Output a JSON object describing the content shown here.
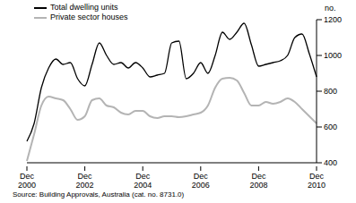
{
  "chart_data": {
    "type": "line",
    "y_label": "no.",
    "source": "Source: Building Approvals, Australia (cat. no. 8731.0)",
    "categories": [
      "Dec 2000",
      null,
      null,
      null,
      null,
      null,
      null,
      null,
      "Dec 2002",
      null,
      null,
      null,
      null,
      null,
      null,
      null,
      "Dec 2004",
      null,
      null,
      null,
      null,
      null,
      null,
      null,
      "Dec 2006",
      null,
      null,
      null,
      null,
      null,
      null,
      null,
      "Dec 2008",
      null,
      null,
      null,
      null,
      null,
      null,
      null,
      "Dec 2010"
    ],
    "series": [
      {
        "name": "Total dwelling units",
        "color": "#000000",
        "values": [
          520,
          620,
          820,
          930,
          980,
          950,
          960,
          870,
          830,
          950,
          1070,
          1000,
          950,
          960,
          930,
          960,
          930,
          880,
          890,
          900,
          1070,
          1080,
          870,
          900,
          960,
          900,
          1000,
          1130,
          1090,
          1130,
          1180,
          1060,
          940,
          950,
          960,
          970,
          1000,
          1100,
          1120,
          1010,
          880
        ]
      },
      {
        "name": "Private sector houses",
        "color": "#b4b4b4",
        "values": [
          410,
          560,
          720,
          770,
          760,
          750,
          700,
          640,
          660,
          750,
          760,
          720,
          710,
          680,
          670,
          690,
          690,
          660,
          650,
          660,
          660,
          655,
          660,
          670,
          680,
          720,
          820,
          870,
          875,
          860,
          790,
          720,
          720,
          740,
          730,
          740,
          760,
          740,
          700,
          660,
          620
        ]
      }
    ],
    "ylim": [
      400,
      1200
    ],
    "yticks": [
      400,
      600,
      800,
      1000,
      1200
    ],
    "grid": false,
    "legend": "top-left"
  }
}
